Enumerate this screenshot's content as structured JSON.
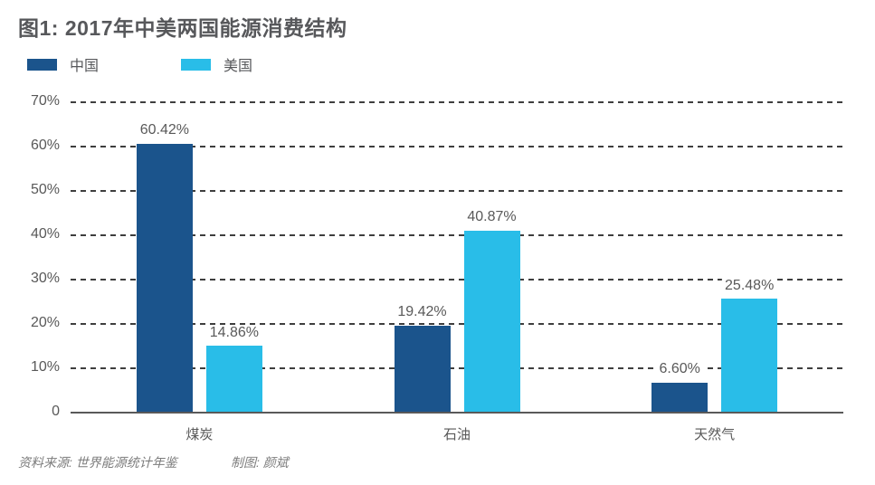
{
  "chart_data": {
    "type": "bar",
    "title": "图1: 2017年中美两国能源消费结构",
    "categories": [
      "煤炭",
      "石油",
      "天然气"
    ],
    "series": [
      {
        "name": "中国",
        "color": "#1B548C",
        "values": [
          60.42,
          19.42,
          6.6
        ],
        "value_labels": [
          "60.42%",
          "19.42%",
          "6.60%"
        ]
      },
      {
        "name": "美国",
        "color": "#29BDE8",
        "values": [
          14.86,
          40.87,
          25.48
        ],
        "value_labels": [
          "14.86%",
          "40.87%",
          "25.48%"
        ]
      }
    ],
    "xlabel": "",
    "ylabel": "",
    "ylim": [
      0,
      70
    ],
    "ytick_step": 10,
    "ytick_labels": [
      "0",
      "10%",
      "20%",
      "30%",
      "40%",
      "50%",
      "60%",
      "70%"
    ],
    "grid": "horizontal-dashed",
    "legend_position": "top-left",
    "colors": {
      "title_text": "#57585B",
      "axis_text": "#595959",
      "gridline": "#3E3E3E",
      "footer_text": "#7C7C7C",
      "background": "#FFFFFF"
    }
  },
  "footer": {
    "source": "资料来源: 世界能源统计年鉴",
    "credit": "制图: 颜斌"
  }
}
